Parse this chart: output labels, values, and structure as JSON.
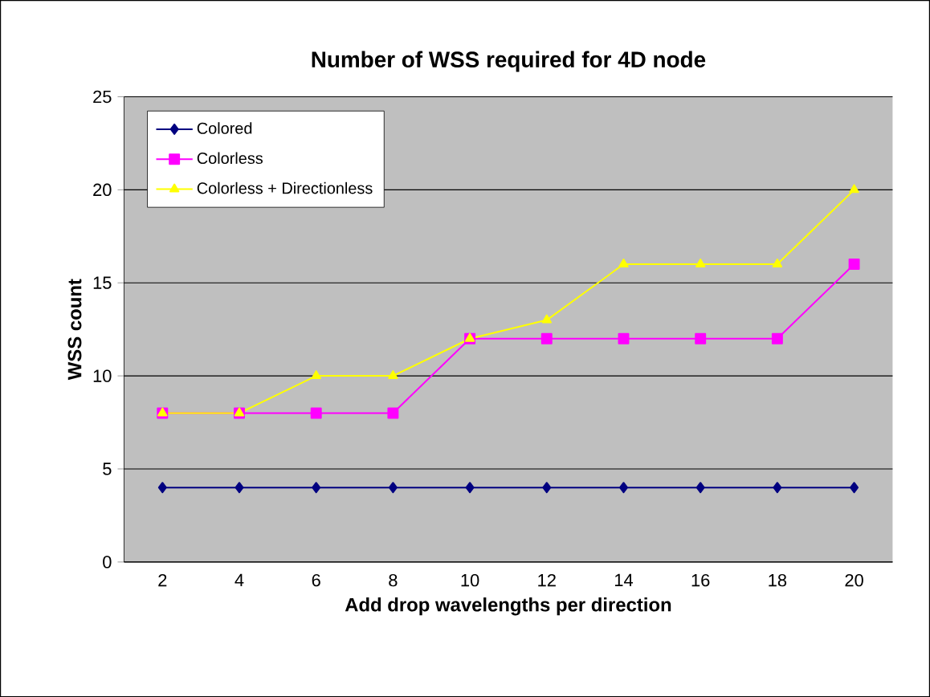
{
  "chart_data": {
    "type": "line",
    "title": "Number of WSS required for 4D node",
    "xlabel": "Add drop wavelengths per direction",
    "ylabel": "WSS count",
    "categories": [
      "2",
      "4",
      "6",
      "8",
      "10",
      "12",
      "14",
      "16",
      "18",
      "20"
    ],
    "series": [
      {
        "name": "Colored",
        "color": "#000080",
        "marker": "diamond",
        "values": [
          4,
          4,
          4,
          4,
          4,
          4,
          4,
          4,
          4,
          4
        ]
      },
      {
        "name": "Colorless",
        "color": "#ff00ff",
        "marker": "square",
        "values": [
          8,
          8,
          8,
          8,
          12,
          12,
          12,
          12,
          12,
          16
        ]
      },
      {
        "name": "Colorless + Directionless",
        "color": "#ffff00",
        "marker": "triangle",
        "values": [
          8,
          8,
          10,
          10,
          12,
          13,
          16,
          16,
          16,
          20
        ]
      }
    ],
    "ylim": [
      0,
      25
    ],
    "yticks": [
      0,
      5,
      10,
      15,
      20,
      25
    ],
    "grid": "y",
    "legend": "top left"
  }
}
